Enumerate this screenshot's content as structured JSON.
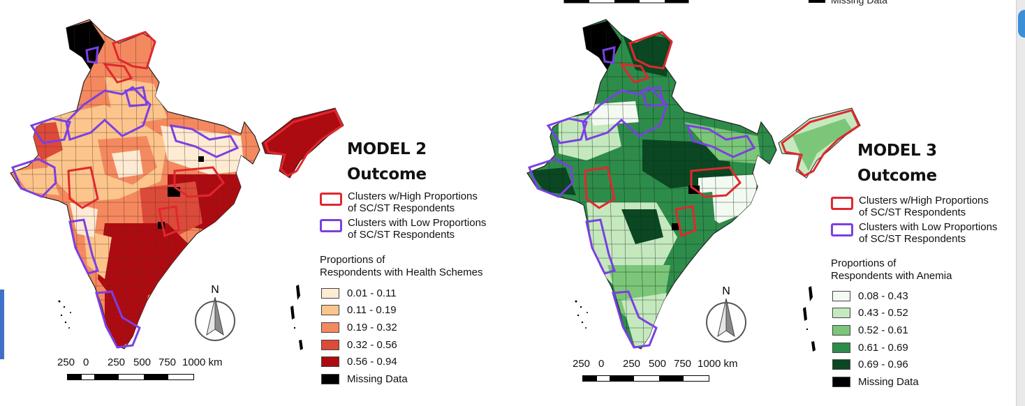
{
  "panels": [
    {
      "title_line1": "MODEL 2",
      "title_line2": "Outcome",
      "cluster_legend": [
        {
          "line1": "Clusters w/High Proportions",
          "line2": "of SC/ST Respondents",
          "color": "#e0282e"
        },
        {
          "line1": "Clusters with Low Proportions",
          "line2": "of SC/ST Respondents",
          "color": "#7b3fe4"
        }
      ],
      "scale_title_line1": "Proportions of",
      "scale_title_line2": "Respondents with Health Schemes",
      "classes": [
        {
          "label": "0.01 - 0.11",
          "color": "#fdebd3"
        },
        {
          "label": "0.11 - 0.19",
          "color": "#fbc58c"
        },
        {
          "label": "0.19 - 0.32",
          "color": "#f4895f"
        },
        {
          "label": "0.32 - 0.56",
          "color": "#dc4a3a"
        },
        {
          "label": "0.56 - 0.94",
          "color": "#ad0b12"
        },
        {
          "label": "Missing Data",
          "color": "#000000"
        }
      ],
      "scalebar_labels": [
        "250",
        "0",
        "250",
        "500",
        "750",
        "1000 km"
      ],
      "north_label": "N"
    },
    {
      "title_line1": "MODEL 3",
      "title_line2": "Outcome",
      "cluster_legend": [
        {
          "line1": "Clusters w/High Proportions",
          "line2": "of SC/ST Respondents",
          "color": "#e0282e"
        },
        {
          "line1": "Clusters with Low Proportions",
          "line2": "of SC/ST Respondents",
          "color": "#7b3fe4"
        }
      ],
      "scale_title_line1": "Proportions of",
      "scale_title_line2": "Respondents with Anemia",
      "classes": [
        {
          "label": "0.08 - 0.43",
          "color": "#f3faf1"
        },
        {
          "label": "0.43 - 0.52",
          "color": "#c6e8bf"
        },
        {
          "label": "0.52 - 0.61",
          "color": "#7cc679"
        },
        {
          "label": "0.61 - 0.69",
          "color": "#2e8c4b"
        },
        {
          "label": "0.69 - 0.96",
          "color": "#0a4722"
        },
        {
          "label": "Missing Data",
          "color": "#000000"
        }
      ],
      "scalebar_labels": [
        "250",
        "0",
        "250",
        "500",
        "750",
        "1000 km"
      ],
      "north_label": "N",
      "top_fragment_text": "Missing Data"
    }
  ]
}
